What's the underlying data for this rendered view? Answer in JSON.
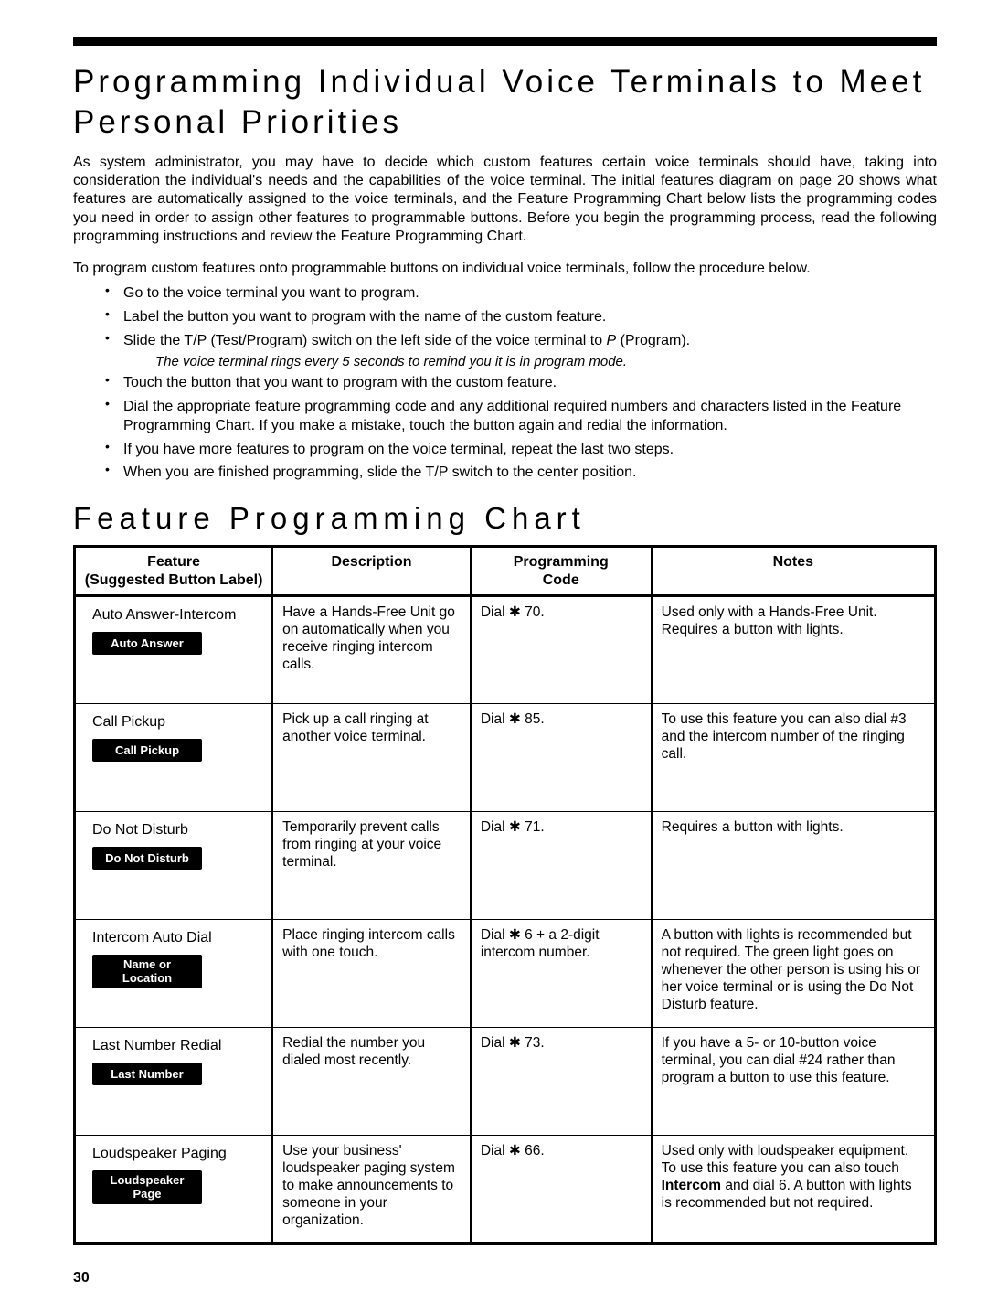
{
  "title": "Programming Individual Voice Terminals to Meet Personal Priorities",
  "intro1": "As system administrator, you may have to decide which custom features certain voice terminals should have, taking into consideration the individual's needs and the capabilities of the voice terminal. The initial features diagram on page 20 shows what features are automatically assigned to the voice terminals, and the Feature Programming Chart below lists the programming codes you need in order to assign other features to programmable buttons. Before you begin the programming process, read the following programming instructions and review the Feature Programming Chart.",
  "intro2": "To program custom features onto programmable buttons on individual voice terminals, follow the procedure below.",
  "bullets": [
    "Go to the voice terminal you want to program.",
    "Label the button you want to program with the name of the custom feature.",
    "Slide the T/P (Test/Program) switch on the left side of the voice terminal to P (Program).",
    {
      "italic": "The voice terminal rings every 5 seconds to remind you it is in program mode."
    },
    "Touch the button that you want to program with the custom feature.",
    "Dial the appropriate feature programming code and any additional required numbers and characters listed in the Feature Programming Chart. If you make a mistake, touch the button again and redial the information.",
    "If you have more features to program on the voice terminal, repeat the last two steps.",
    "When you are finished programming, slide the T/P switch to the center position."
  ],
  "chart_title": "Feature Programming Chart",
  "columns": {
    "feature_hdr_line1": "Feature",
    "feature_hdr_line2": "(Suggested Button Label)",
    "description": "Description",
    "code_line1": "Programming",
    "code_line2": "Code",
    "notes": "Notes"
  },
  "rows": [
    {
      "feature": "Auto Answer-Intercom",
      "button": "Auto Answer",
      "desc": "Have a Hands-Free Unit go on automatically when you receive ringing intercom calls.",
      "code": "Dial ✱ 70.",
      "notes": "Used only with a Hands-Free Unit. Requires a button with lights."
    },
    {
      "feature": "Call Pickup",
      "button": "Call Pickup",
      "desc": "Pick up a call ringing at another voice terminal.",
      "code": "Dial ✱ 85.",
      "notes": "To use this feature you can also dial #3 and the intercom number of the ringing call."
    },
    {
      "feature": "Do Not Disturb",
      "button": "Do Not Disturb",
      "desc": "Temporarily prevent calls from ringing at your voice terminal.",
      "code": "Dial ✱ 71.",
      "notes": "Requires a button with lights."
    },
    {
      "feature": "Intercom Auto Dial",
      "button": "Name or\nLocation",
      "desc": "Place ringing intercom calls with one touch.",
      "code": "Dial ✱ 6 + a 2-digit intercom number.",
      "notes": "A button with lights is recommended but not required. The green light goes on whenever the other person is using his or her voice terminal or is using the Do Not Disturb feature."
    },
    {
      "feature": "Last Number Redial",
      "button": "Last Number",
      "desc": "Redial the number you dialed most recently.",
      "code": "Dial ✱ 73.",
      "notes": "If you have a 5- or 10-button voice terminal, you can dial #24 rather than program a button to use this feature."
    },
    {
      "feature": "Loudspeaker Paging",
      "button": "Loudspeaker\nPage",
      "desc": "Use your business' loudspeaker paging system to make announcements to someone in your organization.",
      "code": "Dial ✱ 66.",
      "notes_html": "Used only with loudspeaker equipment. To use this feature you can also touch <b>Intercom</b> and dial 6. A button with lights is recommended but not required."
    }
  ],
  "page_number": "30"
}
